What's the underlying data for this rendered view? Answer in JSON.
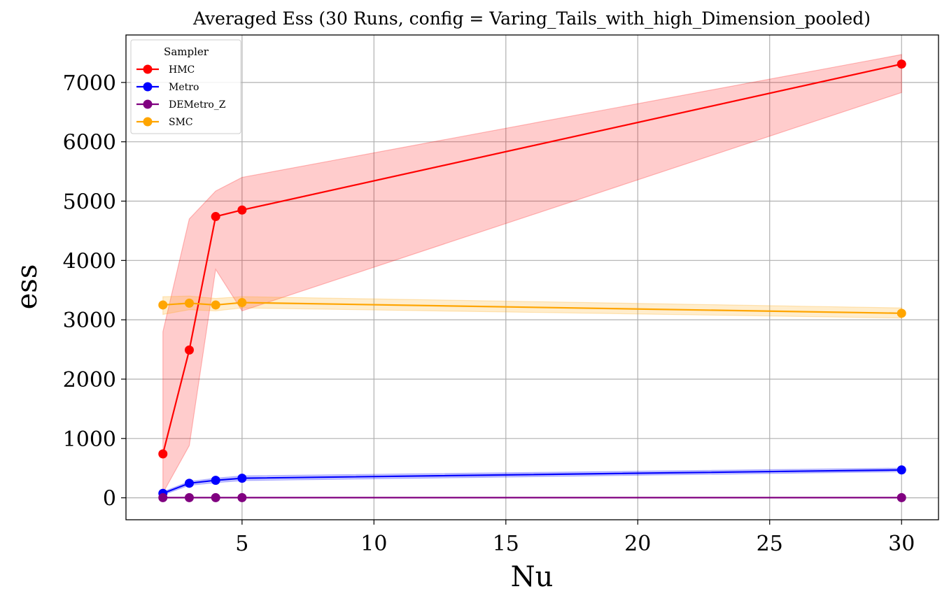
{
  "chart_data": {
    "type": "line",
    "title": "Averaged Ess (30 Runs, config = Varing_Tails_with_high_Dimension_pooled)",
    "xlabel": "Nu",
    "ylabel": "ess",
    "x": [
      2,
      3,
      4,
      5,
      30
    ],
    "xlim": [
      0.6,
      31.4
    ],
    "ylim": [
      -370,
      7800
    ],
    "xticks": [
      5,
      10,
      15,
      20,
      25,
      30
    ],
    "yticks": [
      0,
      1000,
      2000,
      3000,
      4000,
      5000,
      6000,
      7000
    ],
    "grid": true,
    "legend": {
      "title": "Sampler",
      "position": "top-left"
    },
    "series": [
      {
        "name": "HMC",
        "color": "#ff0000",
        "values": [
          740,
          2490,
          4740,
          4850,
          7310
        ],
        "lower": [
          80,
          880,
          3850,
          3150,
          6830
        ],
        "upper": [
          2800,
          4700,
          5170,
          5400,
          7470
        ]
      },
      {
        "name": "Metro",
        "color": "#0000ff",
        "values": [
          75,
          245,
          295,
          330,
          470
        ],
        "lower": [
          50,
          210,
          255,
          290,
          440
        ],
        "upper": [
          100,
          275,
          330,
          370,
          500
        ]
      },
      {
        "name": "DEMetro_Z",
        "color": "#800080",
        "values": [
          3,
          3,
          3,
          3,
          3
        ],
        "lower": [
          0,
          0,
          0,
          0,
          0
        ],
        "upper": [
          8,
          8,
          8,
          8,
          8
        ]
      },
      {
        "name": "SMC",
        "color": "#ffa500",
        "values": [
          3250,
          3280,
          3250,
          3290,
          3110
        ],
        "lower": [
          3090,
          3170,
          3150,
          3200,
          3030
        ],
        "upper": [
          3390,
          3400,
          3360,
          3390,
          3200
        ]
      }
    ]
  }
}
